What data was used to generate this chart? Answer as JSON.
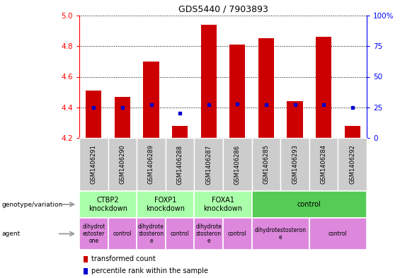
{
  "title": "GDS5440 / 7903893",
  "samples": [
    "GSM1406291",
    "GSM1406290",
    "GSM1406289",
    "GSM1406288",
    "GSM1406287",
    "GSM1406286",
    "GSM1406285",
    "GSM1406293",
    "GSM1406284",
    "GSM1406292"
  ],
  "transformed_count": [
    4.51,
    4.47,
    4.7,
    4.28,
    4.94,
    4.81,
    4.85,
    4.44,
    4.86,
    4.28
  ],
  "percentile_rank": [
    25,
    25,
    27,
    20,
    27,
    28,
    27,
    27,
    27,
    25
  ],
  "ylim": [
    4.2,
    5.0
  ],
  "y2lim": [
    0,
    100
  ],
  "yticks": [
    4.2,
    4.4,
    4.6,
    4.8,
    5.0
  ],
  "y2ticks": [
    0,
    25,
    50,
    75,
    100
  ],
  "bar_color": "#cc0000",
  "dot_color": "#0000cc",
  "sample_box_color": "#cccccc",
  "geno_light_color": "#aaffaa",
  "geno_dark_color": "#55cc55",
  "agent_color": "#dd88dd",
  "genotype_groups": [
    {
      "label": "CTBP2\nknockdown",
      "start": 0,
      "end": 2,
      "dark": false
    },
    {
      "label": "FOXP1\nknockdown",
      "start": 2,
      "end": 4,
      "dark": false
    },
    {
      "label": "FOXA1\nknockdown",
      "start": 4,
      "end": 6,
      "dark": false
    },
    {
      "label": "control",
      "start": 6,
      "end": 10,
      "dark": true
    }
  ],
  "agent_groups": [
    {
      "label": "dihydrot\nestoster\none",
      "start": 0,
      "end": 1
    },
    {
      "label": "control",
      "start": 1,
      "end": 2
    },
    {
      "label": "dihydrote\nstosteron\ne",
      "start": 2,
      "end": 3
    },
    {
      "label": "control",
      "start": 3,
      "end": 4
    },
    {
      "label": "dihydrote\nstosteron\ne",
      "start": 4,
      "end": 5
    },
    {
      "label": "control",
      "start": 5,
      "end": 6
    },
    {
      "label": "dihydrotestosteron\ne",
      "start": 6,
      "end": 8
    },
    {
      "label": "control",
      "start": 8,
      "end": 10
    }
  ],
  "legend_items": [
    {
      "label": "transformed count",
      "color": "#cc0000"
    },
    {
      "label": "percentile rank within the sample",
      "color": "#0000cc"
    }
  ]
}
